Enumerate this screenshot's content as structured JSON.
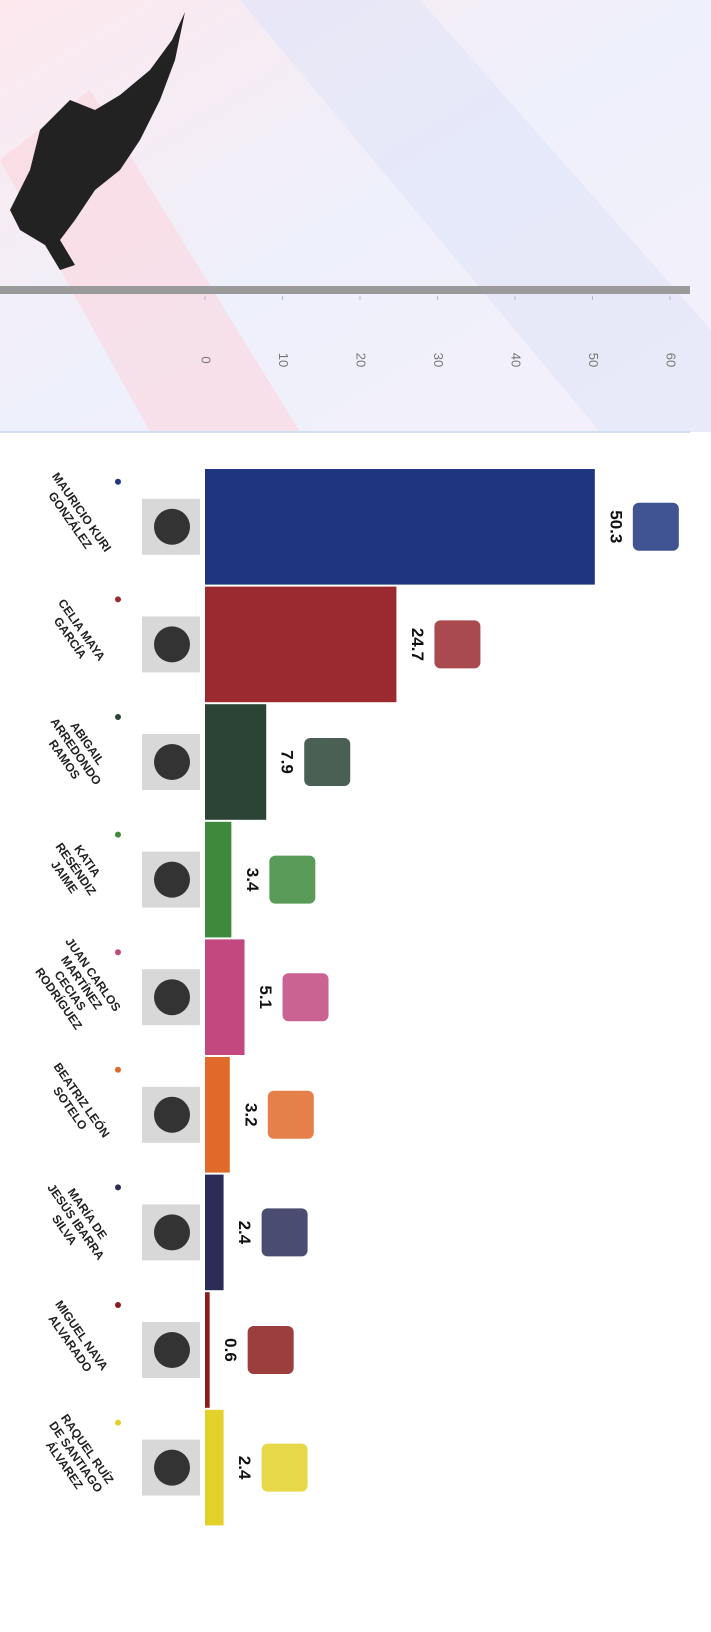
{
  "chart_data": {
    "type": "bar",
    "orientation": "horizontal",
    "categories": [
      [
        "MAURICIO KURI",
        "GONZÁLEZ"
      ],
      [
        "CELIA MAYA",
        "GARCÍA"
      ],
      [
        "ABIGAIL",
        "ARREDONDO",
        "RAMOS"
      ],
      [
        "KATIA",
        "RESÉNDIZ",
        "JAIME"
      ],
      [
        "JUAN CARLOS",
        "MARTÍNEZ",
        "CECIAS",
        "RODRÍGUEZ"
      ],
      [
        "BEATRIZ LEÓN",
        "SOTELO"
      ],
      [
        "MARÍA DE",
        "JESÚS IBARRA",
        "SILVA"
      ],
      [
        "MIGUEL NAVA",
        "ALVARADO"
      ],
      [
        "RAQUEL RUÍZ",
        "DE SANTIAGO",
        "ÁLVAREZ"
      ]
    ],
    "values": [
      50.3,
      24.7,
      7.9,
      3.4,
      5.1,
      3.2,
      2.4,
      0.6,
      2.4
    ],
    "colors": [
      "#1f3580",
      "#9a2a30",
      "#2c4436",
      "#3d8a3c",
      "#c2487f",
      "#e06a2a",
      "#2b2d58",
      "#8c1c1c",
      "#e3d12a"
    ],
    "xlim": [
      0,
      60
    ],
    "xticks": [
      0,
      10,
      20,
      30,
      40,
      50,
      60
    ]
  }
}
